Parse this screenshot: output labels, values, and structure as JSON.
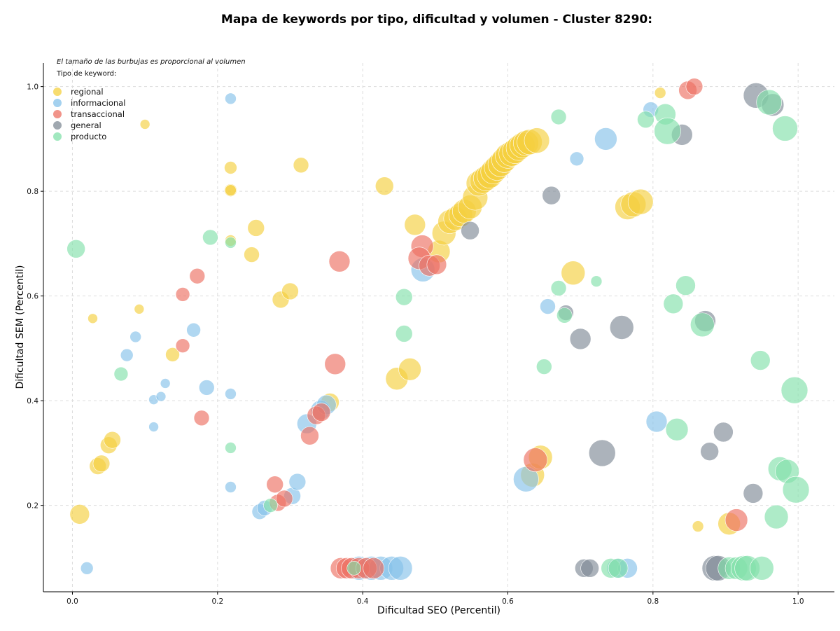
{
  "chart_data": {
    "type": "scatter",
    "title": "Mapa de keywords por tipo, dificultad y volumen - Cluster 8290:",
    "xlabel": "Dificultad SEO (Percentil)",
    "ylabel": "Dificultad SEM (Percentil)",
    "annotation": "El tamaño de las burbujas es proporcional al volumen",
    "legend_title": "Tipo de keyword:",
    "legend_position": "top-left",
    "grid": true,
    "xlim": [
      -0.04,
      1.05
    ],
    "ylim": [
      0.035,
      1.045
    ],
    "xticks": [
      0.0,
      0.2,
      0.4,
      0.6,
      0.8,
      1.0
    ],
    "yticks": [
      0.2,
      0.4,
      0.6,
      0.8,
      1.0
    ],
    "xtick_labels": [
      "0.0",
      "0.2",
      "0.4",
      "0.6",
      "0.8",
      "1.0"
    ],
    "ytick_labels": [
      "0.2",
      "0.4",
      "0.6",
      "0.8",
      "1.0"
    ],
    "series": [
      {
        "name": "regional",
        "color": "#f4d03f",
        "points": [
          [
            0.01,
            0.183,
            14
          ],
          [
            0.028,
            0.557,
            7
          ],
          [
            0.035,
            0.275,
            12
          ],
          [
            0.04,
            0.28,
            12
          ],
          [
            0.05,
            0.315,
            12
          ],
          [
            0.055,
            0.325,
            12
          ],
          [
            0.092,
            0.575,
            7
          ],
          [
            0.1,
            0.928,
            7
          ],
          [
            0.138,
            0.488,
            10
          ],
          [
            0.218,
            0.845,
            9
          ],
          [
            0.218,
            0.802,
            9
          ],
          [
            0.218,
            0.802,
            8
          ],
          [
            0.218,
            0.706,
            8
          ],
          [
            0.247,
            0.679,
            11
          ],
          [
            0.253,
            0.73,
            12
          ],
          [
            0.287,
            0.593,
            12
          ],
          [
            0.3,
            0.609,
            12
          ],
          [
            0.315,
            0.85,
            11
          ],
          [
            0.355,
            0.397,
            13
          ],
          [
            0.43,
            0.81,
            13
          ],
          [
            0.447,
            0.442,
            16
          ],
          [
            0.465,
            0.46,
            16
          ],
          [
            0.472,
            0.736,
            15
          ],
          [
            0.505,
            0.685,
            16
          ],
          [
            0.512,
            0.72,
            17
          ],
          [
            0.52,
            0.742,
            17
          ],
          [
            0.528,
            0.748,
            17
          ],
          [
            0.535,
            0.755,
            17
          ],
          [
            0.54,
            0.762,
            17
          ],
          [
            0.548,
            0.77,
            17
          ],
          [
            0.555,
            0.788,
            18
          ],
          [
            0.56,
            0.815,
            18
          ],
          [
            0.565,
            0.82,
            18
          ],
          [
            0.57,
            0.825,
            18
          ],
          [
            0.575,
            0.83,
            18
          ],
          [
            0.58,
            0.838,
            18
          ],
          [
            0.585,
            0.845,
            18
          ],
          [
            0.59,
            0.852,
            18
          ],
          [
            0.595,
            0.86,
            18
          ],
          [
            0.6,
            0.868,
            18
          ],
          [
            0.605,
            0.872,
            18
          ],
          [
            0.61,
            0.877,
            18
          ],
          [
            0.615,
            0.883,
            18
          ],
          [
            0.62,
            0.888,
            18
          ],
          [
            0.625,
            0.892,
            18
          ],
          [
            0.63,
            0.894,
            18
          ],
          [
            0.64,
            0.897,
            18
          ],
          [
            0.765,
            0.77,
            18
          ],
          [
            0.773,
            0.775,
            18
          ],
          [
            0.783,
            0.78,
            18
          ],
          [
            0.69,
            0.644,
            17
          ],
          [
            0.81,
            0.988,
            8
          ],
          [
            0.862,
            0.16,
            8
          ],
          [
            0.905,
            0.165,
            16
          ],
          [
            0.634,
            0.258,
            17
          ],
          [
            0.645,
            0.292,
            17
          ],
          [
            0.385,
            0.08,
            10
          ]
        ]
      },
      {
        "name": "informacional",
        "color": "#85c1e9",
        "points": [
          [
            0.02,
            0.08,
            9
          ],
          [
            0.075,
            0.487,
            9
          ],
          [
            0.087,
            0.522,
            8
          ],
          [
            0.112,
            0.35,
            7
          ],
          [
            0.112,
            0.402,
            7
          ],
          [
            0.122,
            0.408,
            7
          ],
          [
            0.128,
            0.433,
            7
          ],
          [
            0.167,
            0.535,
            10
          ],
          [
            0.185,
            0.425,
            11
          ],
          [
            0.218,
            0.977,
            8
          ],
          [
            0.218,
            0.413,
            8
          ],
          [
            0.218,
            0.235,
            8
          ],
          [
            0.258,
            0.188,
            11
          ],
          [
            0.265,
            0.195,
            11
          ],
          [
            0.303,
            0.218,
            12
          ],
          [
            0.31,
            0.245,
            12
          ],
          [
            0.323,
            0.356,
            14
          ],
          [
            0.342,
            0.382,
            14
          ],
          [
            0.35,
            0.392,
            14
          ],
          [
            0.395,
            0.08,
            17
          ],
          [
            0.412,
            0.08,
            17
          ],
          [
            0.425,
            0.08,
            17
          ],
          [
            0.44,
            0.08,
            17
          ],
          [
            0.452,
            0.08,
            17
          ],
          [
            0.483,
            0.65,
            17
          ],
          [
            0.625,
            0.25,
            18
          ],
          [
            0.655,
            0.58,
            11
          ],
          [
            0.695,
            0.862,
            10
          ],
          [
            0.735,
            0.9,
            16
          ],
          [
            0.805,
            0.36,
            15
          ],
          [
            0.75,
            0.08,
            14
          ],
          [
            0.765,
            0.08,
            14
          ],
          [
            0.797,
            0.956,
            11
          ]
        ]
      },
      {
        "name": "transaccional",
        "color": "#ec7063",
        "points": [
          [
            0.152,
            0.603,
            10
          ],
          [
            0.152,
            0.505,
            10
          ],
          [
            0.172,
            0.638,
            11
          ],
          [
            0.178,
            0.367,
            11
          ],
          [
            0.279,
            0.24,
            12
          ],
          [
            0.283,
            0.205,
            12
          ],
          [
            0.292,
            0.213,
            12
          ],
          [
            0.327,
            0.333,
            13
          ],
          [
            0.336,
            0.372,
            13
          ],
          [
            0.343,
            0.378,
            13
          ],
          [
            0.362,
            0.47,
            15
          ],
          [
            0.368,
            0.666,
            15
          ],
          [
            0.37,
            0.08,
            15
          ],
          [
            0.378,
            0.08,
            15
          ],
          [
            0.385,
            0.08,
            15
          ],
          [
            0.395,
            0.08,
            15
          ],
          [
            0.405,
            0.08,
            15
          ],
          [
            0.415,
            0.08,
            15
          ],
          [
            0.482,
            0.695,
            16
          ],
          [
            0.478,
            0.672,
            16
          ],
          [
            0.492,
            0.658,
            15
          ],
          [
            0.502,
            0.66,
            14
          ],
          [
            0.638,
            0.287,
            17
          ],
          [
            0.848,
            0.993,
            13
          ],
          [
            0.857,
            1.0,
            12
          ],
          [
            0.915,
            0.172,
            16
          ]
        ]
      },
      {
        "name": "general",
        "color": "#808b96",
        "points": [
          [
            0.548,
            0.725,
            13
          ],
          [
            0.66,
            0.792,
            13
          ],
          [
            0.68,
            0.568,
            11
          ],
          [
            0.7,
            0.518,
            15
          ],
          [
            0.705,
            0.08,
            13
          ],
          [
            0.713,
            0.08,
            13
          ],
          [
            0.73,
            0.3,
            19
          ],
          [
            0.757,
            0.54,
            17
          ],
          [
            0.84,
            0.908,
            15
          ],
          [
            0.872,
            0.552,
            15
          ],
          [
            0.878,
            0.303,
            13
          ],
          [
            0.885,
            0.08,
            18
          ],
          [
            0.89,
            0.08,
            18
          ],
          [
            0.897,
            0.34,
            14
          ],
          [
            0.938,
            0.223,
            14
          ],
          [
            0.942,
            0.983,
            18
          ],
          [
            0.965,
            0.965,
            16
          ]
        ]
      },
      {
        "name": "producto",
        "color": "#82e0aa",
        "points": [
          [
            0.005,
            0.69,
            13
          ],
          [
            0.067,
            0.451,
            10
          ],
          [
            0.19,
            0.712,
            11
          ],
          [
            0.218,
            0.702,
            8
          ],
          [
            0.218,
            0.31,
            8
          ],
          [
            0.273,
            0.2,
            10
          ],
          [
            0.388,
            0.08,
            10
          ],
          [
            0.457,
            0.598,
            12
          ],
          [
            0.457,
            0.528,
            12
          ],
          [
            0.65,
            0.465,
            11
          ],
          [
            0.67,
            0.942,
            11
          ],
          [
            0.67,
            0.615,
            11
          ],
          [
            0.678,
            0.563,
            11
          ],
          [
            0.722,
            0.628,
            8
          ],
          [
            0.742,
            0.08,
            14
          ],
          [
            0.752,
            0.08,
            14
          ],
          [
            0.79,
            0.937,
            12
          ],
          [
            0.817,
            0.947,
            15
          ],
          [
            0.82,
            0.915,
            19
          ],
          [
            0.828,
            0.585,
            14
          ],
          [
            0.833,
            0.345,
            16
          ],
          [
            0.845,
            0.62,
            14
          ],
          [
            0.868,
            0.545,
            17
          ],
          [
            0.905,
            0.08,
            16
          ],
          [
            0.915,
            0.08,
            16
          ],
          [
            0.925,
            0.08,
            18
          ],
          [
            0.93,
            0.08,
            18
          ],
          [
            0.95,
            0.08,
            17
          ],
          [
            0.948,
            0.477,
            14
          ],
          [
            0.96,
            0.97,
            18
          ],
          [
            0.97,
            0.178,
            17
          ],
          [
            0.975,
            0.27,
            17
          ],
          [
            0.985,
            0.265,
            17
          ],
          [
            0.982,
            0.92,
            18
          ],
          [
            0.995,
            0.42,
            19
          ],
          [
            0.997,
            0.23,
            19
          ]
        ]
      }
    ]
  }
}
